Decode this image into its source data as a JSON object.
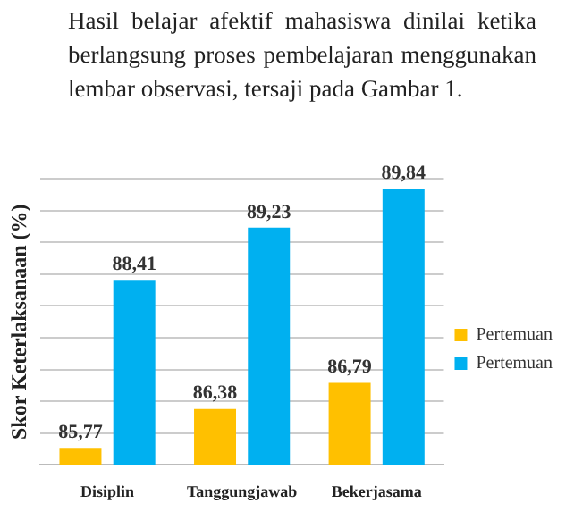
{
  "chart_data": {
    "type": "bar",
    "ylabel": "Skor Keterlaksanaan (%)",
    "annotations": [
      "Hasil belajar afektif mahasiswa dinilai ketika berlangsung proses pembelajaran menggunakan lembar observasi, tersaji pada Gambar 1."
    ],
    "categories": [
      "Disiplin",
      "Tanggungjawab",
      "Bekerjasama"
    ],
    "series": [
      {
        "name": "Pertemuan",
        "color": "#ffc000",
        "values": [
          85.77,
          86.38,
          86.79
        ],
        "value_labels": [
          "85,77",
          "86,38",
          "86,79"
        ]
      },
      {
        "name": "Pertemuan",
        "color": "#00b0f0",
        "values": [
          88.41,
          89.23,
          89.84
        ],
        "value_labels": [
          "88,41",
          "89,23",
          "89,84"
        ]
      }
    ],
    "tick_labels": "x",
    "grid": "y",
    "legend": "right"
  }
}
